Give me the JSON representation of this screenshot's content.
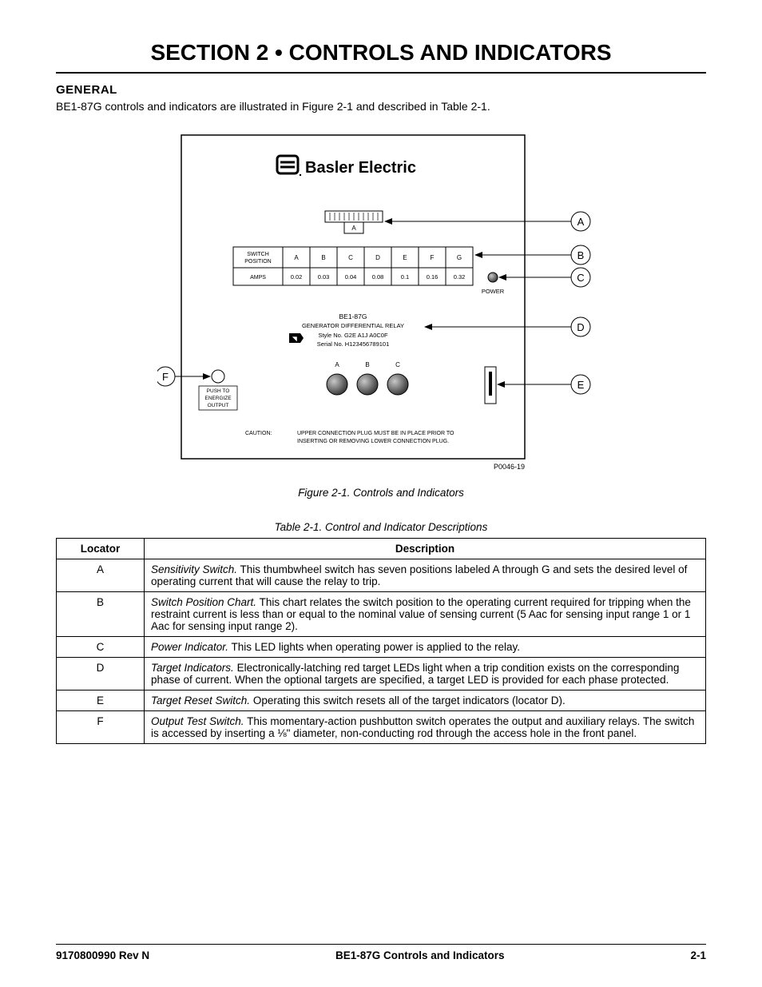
{
  "title": "SECTION 2 • CONTROLS AND INDICATORS",
  "subhead": "GENERAL",
  "intro": "BE1-87G controls and indicators are illustrated in Figure 2-1 and described in Table 2-1.",
  "figure_caption": "Figure 2-1. Controls and Indicators",
  "table_caption": "Table 2-1. Control and Indicator Descriptions",
  "table_headers": {
    "locator": "Locator",
    "description": "Description"
  },
  "rows": {
    "A": {
      "title": "Sensitivity Switch.",
      "body": " This thumbwheel switch has seven positions labeled A through G and sets the desired level of operating current that will cause the relay to trip."
    },
    "B": {
      "title": "Switch Position Chart.",
      "body": " This chart relates the switch position to the operating current required for tripping when the restraint current is less than or equal to the nominal value of sensing current (5 Aac for sensing input range 1 or 1 Aac for sensing input range 2)."
    },
    "C": {
      "title": "Power Indicator.",
      "body": " This LED lights when operating power is applied to the relay."
    },
    "D": {
      "title": "Target Indicators.",
      "body": " Electronically-latching red target LEDs light when a trip condition exists on the corresponding phase of current. When the optional targets are specified, a target LED is provided for each phase protected."
    },
    "E": {
      "title": "Target Reset Switch.",
      "body": " Operating this switch resets all of the target indicators (locator D)."
    },
    "F": {
      "title": "Output Test Switch.",
      "body": " This momentary-action pushbutton switch operates the output and auxiliary relays. The switch is accessed by inserting a ⅛\" diameter, non-conducting rod through the access hole in the front panel."
    }
  },
  "footer": {
    "left": "9170800990 Rev N",
    "center": "BE1-87G Controls and Indicators",
    "right": "2-1"
  },
  "panel": {
    "brand": "Basler Electric",
    "switch_row_label": "SWITCH POSITION",
    "amps_label": "AMPS",
    "positions": [
      "A",
      "B",
      "C",
      "D",
      "E",
      "F",
      "G"
    ],
    "amps": [
      "0.02",
      "0.03",
      "0.04",
      "0.08",
      "0.1",
      "0.16",
      "0.32"
    ],
    "power_label": "POWER",
    "model": "BE1-87G",
    "model_sub": "GENERATOR DIFFERENTIAL RELAY",
    "style": "Style No. G2E A1J A0C0F",
    "serial": "Serial No. H123456789101",
    "phases": [
      "A",
      "B",
      "C"
    ],
    "push_lines": [
      "PUSH TO",
      "ENERGIZE",
      "OUTPUT"
    ],
    "caution_label": "CAUTION:",
    "caution_text1": "UPPER CONNECTION PLUG MUST BE IN PLACE PRIOR TO",
    "caution_text2": "INSERTING OR REMOVING LOWER CONNECTION PLUG.",
    "drawing_no": "P0046-19",
    "callouts": [
      "A",
      "B",
      "C",
      "D",
      "E",
      "F"
    ],
    "thumb_letter": "A",
    "colors": {
      "stroke": "#000000",
      "panel_bg": "#ffffff",
      "led_fill": "#808080",
      "led_grad_light": "#b8b8b8",
      "led_grad_dark": "#4a4a4a",
      "power_led": "#888888"
    }
  }
}
